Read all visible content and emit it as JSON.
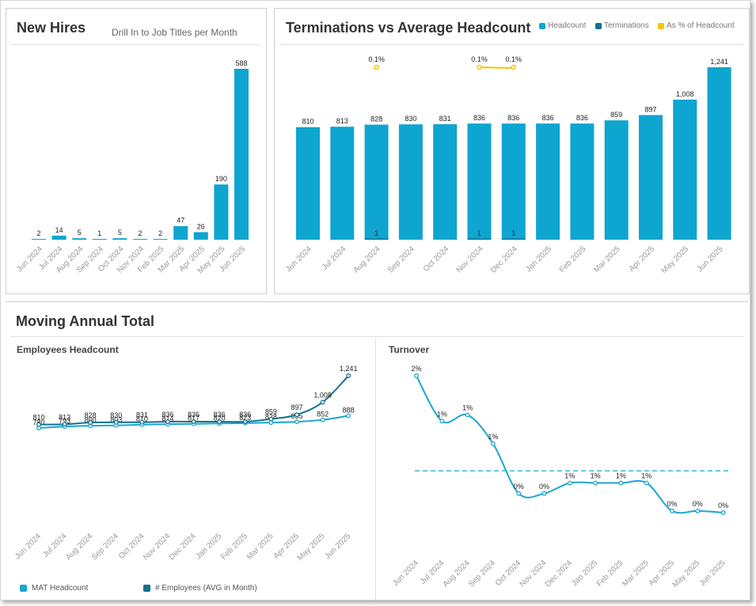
{
  "new_hires": {
    "title": "New Hires",
    "drill_label": "Drill In to Job Titles per Month"
  },
  "terminations": {
    "title": "Terminations vs Average Headcount",
    "legend": [
      "Headcount",
      "Terminations",
      "As % of Headcount"
    ]
  },
  "mat": {
    "title": "Moving Annual Total",
    "employees_title": "Employees Headcount",
    "turnover_title": "Turnover",
    "legend": [
      "MAT Headcount",
      "# Employees (AVG in Month)"
    ]
  },
  "colors": {
    "bar": "#0ea5d0",
    "dark": "#136f8f",
    "yellow": "#f5c400",
    "line_light": "#1aa6cf",
    "line_dark": "#11708f",
    "dashed": "#38b6d8"
  },
  "chart_data": [
    {
      "type": "bar",
      "title": "New Hires",
      "categories": [
        "Jun 2024",
        "Jul 2024",
        "Aug 2024",
        "Sep 2024",
        "Oct 2024",
        "Nov 2024",
        "Feb 2025",
        "Mar 2025",
        "Apr 2025",
        "May 2025",
        "Jun 2025"
      ],
      "values": [
        2,
        14,
        5,
        1,
        5,
        2,
        2,
        47,
        26,
        190,
        588
      ],
      "ylim": [
        0,
        600
      ]
    },
    {
      "type": "bar",
      "title": "Terminations vs Average Headcount",
      "categories": [
        "Jun 2024",
        "Jul 2024",
        "Aug 2024",
        "Sep 2024",
        "Oct 2024",
        "Nov 2024",
        "Dec 2024",
        "Jan 2025",
        "Feb 2025",
        "Mar 2025",
        "Apr 2025",
        "May 2025",
        "Jun 2025"
      ],
      "series": [
        {
          "name": "Headcount",
          "values": [
            810,
            813,
            828,
            830,
            831,
            836,
            836,
            836,
            836,
            859,
            897,
            1008,
            1241
          ]
        },
        {
          "name": "Terminations",
          "values": [
            null,
            null,
            1,
            null,
            null,
            1,
            1,
            null,
            null,
            null,
            null,
            null,
            null
          ]
        },
        {
          "name": "As % of Headcount",
          "values": [
            null,
            null,
            0.1,
            null,
            null,
            0.1,
            0.1,
            null,
            null,
            null,
            null,
            null,
            null
          ],
          "labels": [
            null,
            null,
            "0.1%",
            null,
            null,
            "0.1%",
            "0.1%",
            null,
            null,
            null,
            null,
            null,
            null
          ]
        }
      ],
      "ylim": [
        0,
        1250
      ]
    },
    {
      "type": "line",
      "title": "Employees Headcount",
      "categories": [
        "Jun 2024",
        "Jul 2024",
        "Aug 2024",
        "Sep 2024",
        "Oct 2024",
        "Nov 2024",
        "Dec 2024",
        "Jan 2025",
        "Feb 2025",
        "Mar 2025",
        "Apr 2025",
        "May 2025",
        "Jun 2025"
      ],
      "series": [
        {
          "name": "MAT Headcount",
          "values": [
            780,
            793,
            800,
            803,
            810,
            814,
            817,
            820,
            823,
            828,
            835,
            852,
            888
          ],
          "labels": [
            "780",
            "793",
            "800",
            "803",
            "810",
            "814",
            "817",
            "820",
            "823",
            "828",
            "835",
            "852",
            "888"
          ]
        },
        {
          "name": "# Employees (AVG in Month)",
          "values": [
            810,
            813,
            828,
            830,
            831,
            836,
            836,
            836,
            836,
            859,
            897,
            1008,
            1241
          ],
          "labels": [
            "810",
            "813",
            "828",
            "830",
            "831",
            "836",
            "836",
            "836",
            "836",
            "859",
            "897",
            "1,008",
            "1,241"
          ]
        }
      ]
    },
    {
      "type": "line",
      "title": "Turnover",
      "categories": [
        "Jun 2024",
        "Jul 2024",
        "Aug 2024",
        "Sep 2024",
        "Oct 2024",
        "Nov 2024",
        "Dec 2024",
        "Jan 2025",
        "Feb 2025",
        "Mar 2025",
        "Apr 2025",
        "May 2025",
        "Jun 2025"
      ],
      "series": [
        {
          "name": "Turnover",
          "values": [
            1.85,
            1.33,
            1.4,
            1.07,
            0.5,
            0.5,
            0.62,
            0.62,
            0.62,
            0.62,
            0.3,
            0.3,
            0.28
          ],
          "labels": [
            "2%",
            "1%",
            "1%",
            "1%",
            "0%",
            "0%",
            "1%",
            "1%",
            "1%",
            "1%",
            "0%",
            "0%",
            "0%"
          ]
        }
      ],
      "reference_line": 0.76
    }
  ]
}
